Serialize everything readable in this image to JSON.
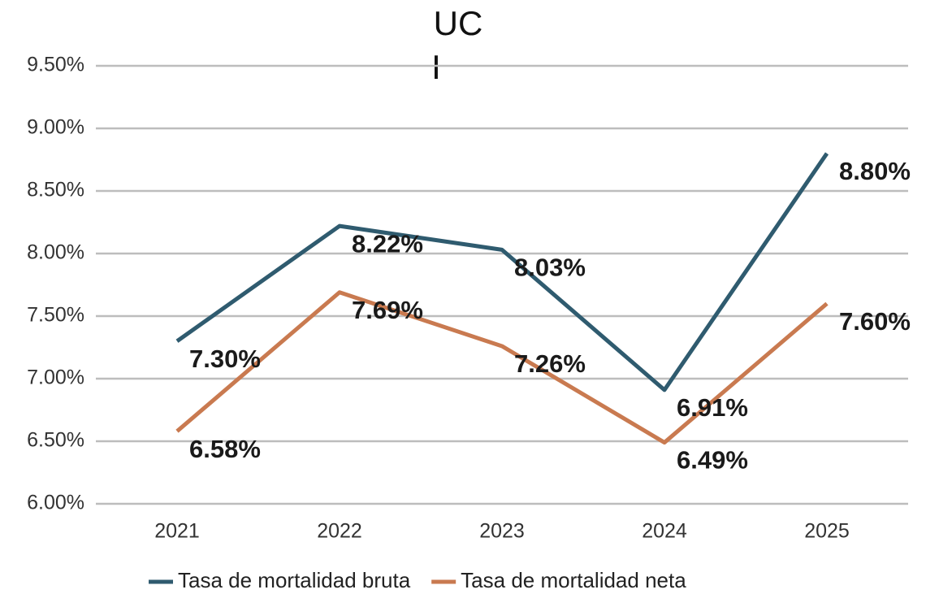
{
  "chart_data": {
    "type": "line",
    "title": [
      "UC",
      "I"
    ],
    "categories": [
      "2021",
      "2022",
      "2023",
      "2024",
      "2025"
    ],
    "series": [
      {
        "name": "Tasa de mortalidad bruta",
        "color": "#2f5b6f",
        "values": [
          7.3,
          8.22,
          8.03,
          6.91,
          8.8
        ],
        "value_labels": [
          "7.30%",
          "8.22%",
          "8.03%",
          "6.91%",
          "8.80%"
        ]
      },
      {
        "name": "Tasa de mortalidad neta",
        "color": "#c97a50",
        "values": [
          6.58,
          7.69,
          7.26,
          6.49,
          7.6
        ],
        "value_labels": [
          "6.58%",
          "7.69%",
          "7.26%",
          "6.49%",
          "7.60%"
        ]
      }
    ],
    "ylim": [
      6,
      9.5
    ],
    "yticks": [
      {
        "value": 6,
        "label": "6.00%"
      },
      {
        "value": 6.5,
        "label": "6.50%"
      },
      {
        "value": 7,
        "label": "7.00%"
      },
      {
        "value": 7.5,
        "label": "7.50%"
      },
      {
        "value": 8,
        "label": "8.00%"
      },
      {
        "value": 8.5,
        "label": "8.50%"
      },
      {
        "value": 9,
        "label": "9.00%"
      },
      {
        "value": 9.5,
        "label": "9.50%"
      }
    ],
    "grid": true,
    "legend": "bottom"
  }
}
